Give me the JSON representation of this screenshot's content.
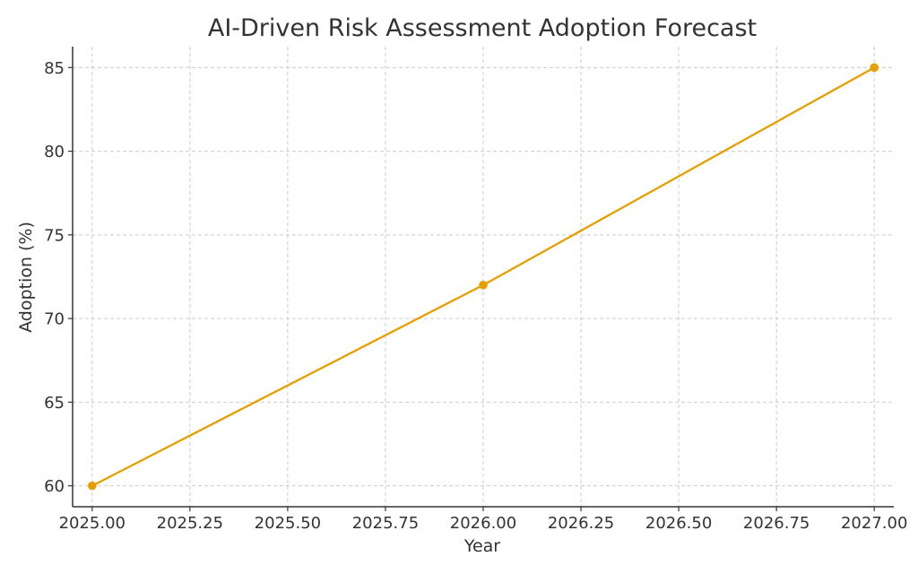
{
  "chart_data": {
    "type": "line",
    "title": "AI-Driven Risk Assessment Adoption Forecast",
    "xlabel": "Year",
    "ylabel": "Adoption (%)",
    "x": [
      2025,
      2026,
      2027
    ],
    "series": [
      {
        "values": [
          60,
          72,
          85
        ],
        "color": "#E69F00",
        "marker": "circle"
      }
    ],
    "xlim": [
      2024.95,
      2027.05
    ],
    "ylim": [
      58.75,
      86.25
    ],
    "x_ticks": [
      2025.0,
      2025.25,
      2025.5,
      2025.75,
      2026.0,
      2026.25,
      2026.5,
      2026.75,
      2027.0
    ],
    "x_tick_labels": [
      "2025.00",
      "2025.25",
      "2025.50",
      "2025.75",
      "2026.00",
      "2026.25",
      "2026.50",
      "2026.75",
      "2027.00"
    ],
    "y_ticks": [
      60,
      65,
      70,
      75,
      80,
      85
    ],
    "y_tick_labels": [
      "60",
      "65",
      "70",
      "75",
      "80",
      "85"
    ],
    "grid": true,
    "grid_style": "dashed",
    "legend": "none"
  }
}
